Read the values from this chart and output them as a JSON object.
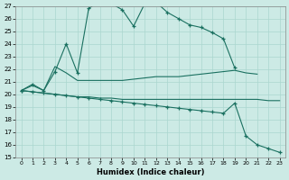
{
  "xlabel": "Humidex (Indice chaleur)",
  "xlim": [
    -0.5,
    23.5
  ],
  "ylim": [
    15,
    27
  ],
  "yticks": [
    15,
    16,
    17,
    18,
    19,
    20,
    21,
    22,
    23,
    24,
    25,
    26,
    27
  ],
  "xticks": [
    0,
    1,
    2,
    3,
    4,
    5,
    6,
    7,
    8,
    9,
    10,
    11,
    12,
    13,
    14,
    15,
    16,
    17,
    18,
    19,
    20,
    21,
    22,
    23
  ],
  "background_color": "#cceae5",
  "line_color": "#1a7060",
  "grid_color": "#aad6cf",
  "curves": [
    {
      "x": [
        0,
        1,
        2,
        3,
        4,
        5,
        6,
        7,
        8,
        9,
        10,
        11,
        12,
        13,
        14,
        15,
        16,
        17,
        18,
        19
      ],
      "y": [
        20.3,
        20.8,
        20.3,
        21.8,
        24.0,
        21.7,
        26.8,
        27.4,
        27.2,
        26.7,
        25.4,
        27.2,
        27.3,
        26.5,
        26.0,
        25.5,
        25.3,
        24.9,
        24.4,
        22.1
      ],
      "marker": true
    },
    {
      "x": [
        0,
        1,
        2,
        3,
        4,
        5,
        6,
        7,
        8,
        9,
        10,
        11,
        12,
        13,
        14,
        15,
        16,
        17,
        18,
        19,
        20,
        21
      ],
      "y": [
        20.3,
        20.7,
        20.3,
        22.2,
        21.7,
        21.1,
        21.1,
        21.1,
        21.1,
        21.1,
        21.2,
        21.3,
        21.4,
        21.4,
        21.4,
        21.5,
        21.6,
        21.7,
        21.8,
        21.9,
        21.7,
        21.6
      ],
      "marker": false
    },
    {
      "x": [
        0,
        1,
        2,
        3,
        4,
        5,
        6,
        7,
        8,
        9,
        10,
        11,
        12,
        13,
        14,
        15,
        16,
        17,
        18,
        19,
        20,
        21,
        22,
        23
      ],
      "y": [
        20.3,
        20.2,
        20.1,
        20.0,
        19.9,
        19.8,
        19.7,
        19.6,
        19.5,
        19.4,
        19.3,
        19.2,
        19.1,
        19.0,
        18.9,
        18.8,
        18.7,
        18.6,
        18.5,
        19.3,
        16.7,
        16.0,
        15.7,
        15.4
      ],
      "marker": true
    },
    {
      "x": [
        0,
        1,
        2,
        3,
        4,
        5,
        6,
        7,
        8,
        9,
        10,
        11,
        12,
        13,
        14,
        15,
        16,
        17,
        18,
        19,
        20,
        21,
        22,
        23
      ],
      "y": [
        20.3,
        20.2,
        20.1,
        20.0,
        19.9,
        19.8,
        19.8,
        19.7,
        19.7,
        19.6,
        19.6,
        19.6,
        19.6,
        19.6,
        19.6,
        19.6,
        19.6,
        19.6,
        19.6,
        19.6,
        19.6,
        19.6,
        19.5,
        19.5
      ],
      "marker": false
    }
  ]
}
